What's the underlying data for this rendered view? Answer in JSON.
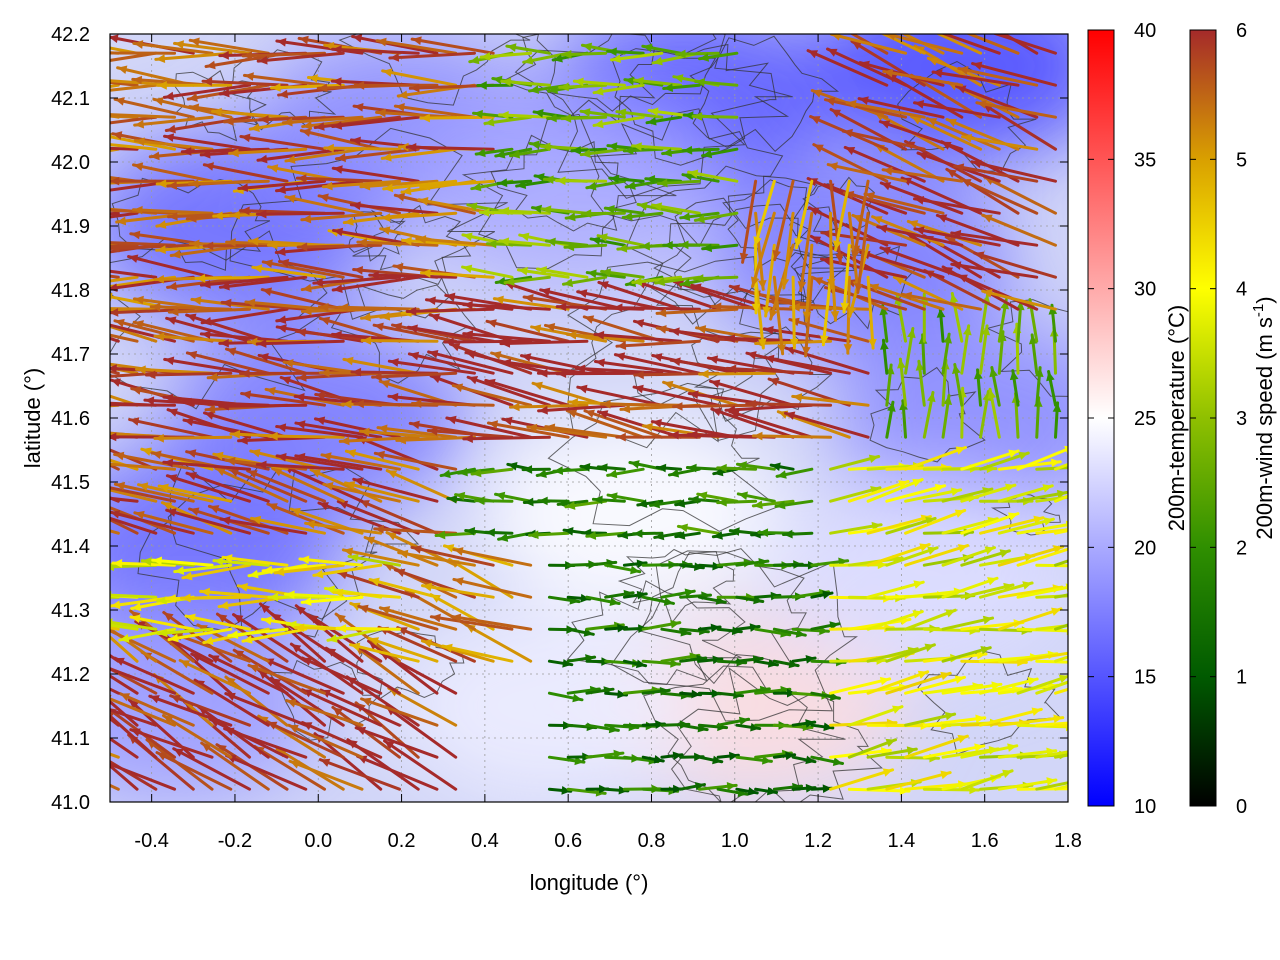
{
  "chart_data": {
    "type": "vector-field",
    "xlabel": "longitude (°)",
    "ylabel": "latitude (°)",
    "xlim": [
      -0.5,
      1.8
    ],
    "ylim": [
      41.0,
      42.2
    ],
    "xticks": [
      "-0.4",
      "-0.2",
      "0.0",
      "0.2",
      "0.4",
      "0.6",
      "0.8",
      "1.0",
      "1.2",
      "1.4",
      "1.6",
      "1.8"
    ],
    "xtick_values": [
      -0.4,
      -0.2,
      0.0,
      0.2,
      0.4,
      0.6,
      0.8,
      1.0,
      1.2,
      1.4,
      1.6,
      1.8
    ],
    "yticks": [
      "41.0",
      "41.1",
      "41.2",
      "41.3",
      "41.4",
      "41.5",
      "41.6",
      "41.7",
      "41.8",
      "41.9",
      "42.0",
      "42.1",
      "42.2"
    ],
    "ytick_values": [
      41.0,
      41.1,
      41.2,
      41.3,
      41.4,
      41.5,
      41.6,
      41.7,
      41.8,
      41.9,
      42.0,
      42.1,
      42.2
    ],
    "grid": true,
    "layers": [
      "temperature field",
      "terrain contours",
      "wind vectors"
    ],
    "temperature_colorbar": {
      "label": "200m-temperature (°C)",
      "range": [
        10,
        40
      ],
      "ticks": [
        "10",
        "15",
        "20",
        "25",
        "30",
        "35",
        "40"
      ],
      "tick_values": [
        10,
        15,
        20,
        25,
        30,
        35,
        40
      ],
      "colors": [
        "#0000ff",
        "#ffffff",
        "#ff0000"
      ]
    },
    "wind_colorbar": {
      "label": "200m-wind speed (m s",
      "label_superscript": "-1",
      "label_suffix": ")",
      "range": [
        0,
        6
      ],
      "ticks": [
        "0",
        "1",
        "2",
        "3",
        "4",
        "5",
        "6"
      ],
      "tick_values": [
        0,
        1,
        2,
        3,
        4,
        5,
        6
      ],
      "colors": [
        "#000000",
        "#005a00",
        "#2f8f00",
        "#8fc000",
        "#ffff00",
        "#d9a000",
        "#a52a2a"
      ]
    },
    "temperature_blobs": [
      {
        "lon": -0.2,
        "lat": 41.9,
        "temp": 16
      },
      {
        "lon": 0.2,
        "lat": 42.05,
        "temp": 18
      },
      {
        "lon": 0.9,
        "lat": 42.1,
        "temp": 15
      },
      {
        "lon": 1.55,
        "lat": 42.15,
        "temp": 14
      },
      {
        "lon": 1.3,
        "lat": 41.85,
        "temp": 17
      },
      {
        "lon": -0.3,
        "lat": 41.4,
        "temp": 16
      },
      {
        "lon": 0.0,
        "lat": 41.6,
        "temp": 17
      },
      {
        "lon": 1.6,
        "lat": 41.6,
        "temp": 18
      },
      {
        "lon": 0.75,
        "lat": 41.45,
        "temp": 25
      },
      {
        "lon": 1.05,
        "lat": 41.15,
        "temp": 27
      },
      {
        "lon": 0.55,
        "lat": 41.15,
        "temp": 24
      },
      {
        "lon": 1.45,
        "lat": 41.35,
        "temp": 23
      },
      {
        "lon": -0.35,
        "lat": 41.15,
        "temp": 19
      },
      {
        "lon": 0.6,
        "lat": 41.95,
        "temp": 20
      }
    ],
    "wind_regions": [
      {
        "lat_min": 41.72,
        "lat_max": 42.2,
        "lon_min": -0.5,
        "lon_max": 0.45,
        "direction_deg": 178,
        "speed": 5.6
      },
      {
        "lat_min": 41.78,
        "lat_max": 42.2,
        "lon_min": 0.45,
        "lon_max": 1.05,
        "direction_deg": 180,
        "speed": 2.6
      },
      {
        "lat_min": 41.8,
        "lat_max": 42.0,
        "lon_min": 1.05,
        "lon_max": 1.35,
        "direction_deg": 265,
        "speed": 5.2
      },
      {
        "lat_min": 41.72,
        "lat_max": 42.2,
        "lon_min": 1.35,
        "lon_max": 1.8,
        "direction_deg": 160,
        "speed": 5.8
      },
      {
        "lat_min": 41.55,
        "lat_max": 41.8,
        "lon_min": -0.5,
        "lon_max": 1.35,
        "direction_deg": 172,
        "speed": 5.8
      },
      {
        "lat_min": 41.4,
        "lat_max": 41.6,
        "lon_min": -0.5,
        "lon_max": 0.35,
        "direction_deg": 165,
        "speed": 5.7
      },
      {
        "lat_min": 41.4,
        "lat_max": 41.58,
        "lon_min": 0.35,
        "lon_max": 1.2,
        "direction_deg": 180,
        "speed": 1.8
      },
      {
        "lat_min": 41.25,
        "lat_max": 41.45,
        "lon_min": -0.5,
        "lon_max": 0.2,
        "direction_deg": 180,
        "speed": 4.0
      },
      {
        "lat_min": 41.2,
        "lat_max": 41.45,
        "lon_min": 0.2,
        "lon_max": 0.55,
        "direction_deg": 160,
        "speed": 5.2
      },
      {
        "lat_min": 41.0,
        "lat_max": 41.25,
        "lon_min": -0.5,
        "lon_max": 0.35,
        "direction_deg": 150,
        "speed": 5.8
      },
      {
        "lat_min": 41.0,
        "lat_max": 41.4,
        "lon_min": 0.55,
        "lon_max": 1.2,
        "direction_deg": 0,
        "speed": 1.6
      },
      {
        "lat_min": 41.0,
        "lat_max": 41.55,
        "lon_min": 1.2,
        "lon_max": 1.8,
        "direction_deg": 10,
        "speed": 3.8
      },
      {
        "lat_min": 41.55,
        "lat_max": 41.72,
        "lon_min": 1.35,
        "lon_max": 1.8,
        "direction_deg": 90,
        "speed": 2.5
      }
    ]
  }
}
